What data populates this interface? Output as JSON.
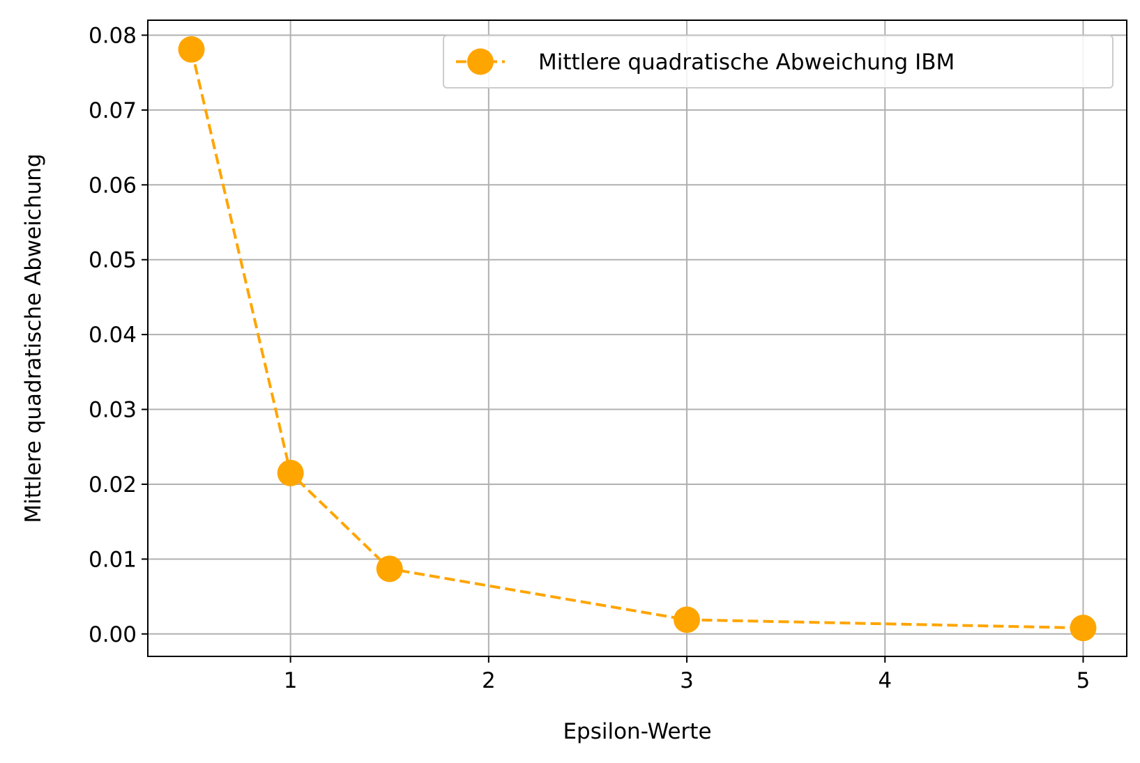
{
  "chart_data": {
    "type": "line",
    "title": "",
    "xlabel": "Epsilon-Werte",
    "ylabel": "Mittlere quadratische Abweichung",
    "xlim": [
      0.28,
      5.22
    ],
    "ylim": [
      -0.003,
      0.082
    ],
    "xticks": [
      1,
      2,
      3,
      4,
      5
    ],
    "xtick_labels": [
      "1",
      "2",
      "3",
      "4",
      "5"
    ],
    "yticks": [
      0.0,
      0.01,
      0.02,
      0.03,
      0.04,
      0.05,
      0.06,
      0.07,
      0.08
    ],
    "ytick_labels": [
      "0.00",
      "0.01",
      "0.02",
      "0.03",
      "0.04",
      "0.05",
      "0.06",
      "0.07",
      "0.08"
    ],
    "grid": true,
    "legend_position": "top-right",
    "series": [
      {
        "name": "Mittlere quadratische Abweichung IBM",
        "color": "#FFA500",
        "line_style": "dashed",
        "marker": "circle",
        "x": [
          0.5,
          1,
          1.5,
          3,
          5
        ],
        "y": [
          0.0781,
          0.0215,
          0.0087,
          0.0019,
          0.0008
        ]
      }
    ]
  }
}
